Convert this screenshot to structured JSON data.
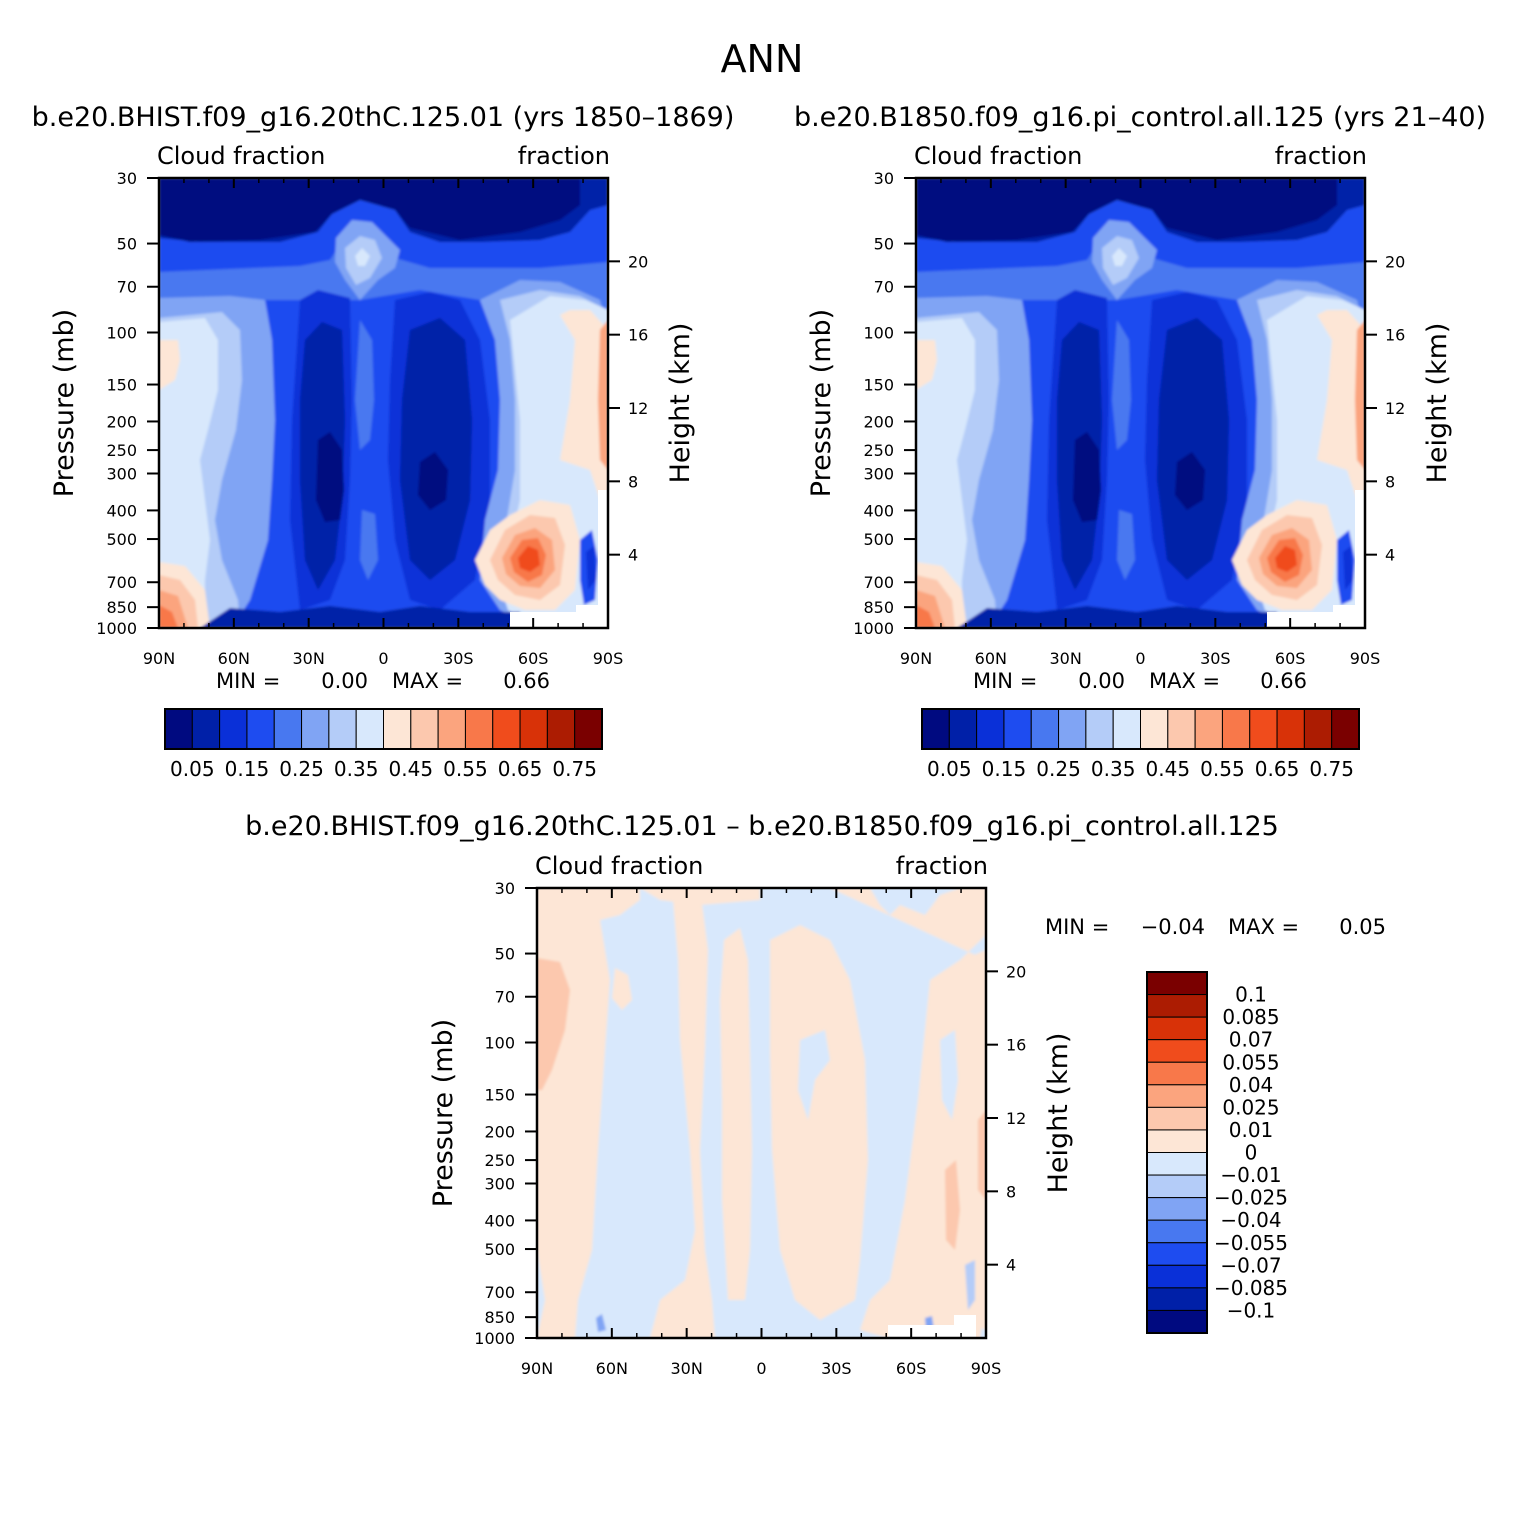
{
  "figure": {
    "title": "ANN",
    "panel_left_title": "b.e20.BHIST.f09_g16.20thC.125.01 (yrs 1850–1869)",
    "panel_right_title": "b.e20.B1850.f09_g16.pi_control.all.125 (yrs 21–40)",
    "diff_title": "b.e20.BHIST.f09_g16.20thC.125.01 – b.e20.B1850.f09_g16.pi_control.all.125"
  },
  "chart_data": [
    {
      "type": "heatmap",
      "panel": "left",
      "variable_label": "Cloud fraction",
      "units_label": "fraction",
      "ylabel": "Pressure (mb)",
      "ylabel_right": "Height (km)",
      "x_ticks": [
        "90N",
        "60N",
        "30N",
        "0",
        "30S",
        "60S",
        "90S"
      ],
      "xlim": [
        90,
        -90
      ],
      "y_ticks": [
        "30",
        "50",
        "70",
        "100",
        "150",
        "200",
        "250",
        "300",
        "400",
        "500",
        "700",
        "850",
        "1000"
      ],
      "ylim": [
        1000,
        30
      ],
      "y_scale": "log",
      "y_ticks_right": [
        "20",
        "16",
        "12",
        "8",
        "4"
      ],
      "stats": {
        "min_label": "MIN =",
        "min_value": "0.00",
        "max_label": "MAX =",
        "max_value": "0.66"
      },
      "colorbar": {
        "orientation": "horizontal",
        "labels": [
          "0.05",
          "0.15",
          "0.25",
          "0.35",
          "0.45",
          "0.55",
          "0.65",
          "0.75"
        ],
        "colors": [
          "#000a80",
          "#0020a8",
          "#0a30d8",
          "#1e4cf0",
          "#4878f0",
          "#80a4f4",
          "#b4ccf8",
          "#d8e8fc",
          "#fde6d6",
          "#fcc8ae",
          "#fba47e",
          "#f8784a",
          "#f04c1c",
          "#d83208",
          "#ac1c02",
          "#7a0000"
        ]
      }
    },
    {
      "type": "heatmap",
      "panel": "right",
      "variable_label": "Cloud fraction",
      "units_label": "fraction",
      "ylabel": "Pressure (mb)",
      "ylabel_right": "Height (km)",
      "x_ticks": [
        "90N",
        "60N",
        "30N",
        "0",
        "30S",
        "60S",
        "90S"
      ],
      "xlim": [
        90,
        -90
      ],
      "y_ticks": [
        "30",
        "50",
        "70",
        "100",
        "150",
        "200",
        "250",
        "300",
        "400",
        "500",
        "700",
        "850",
        "1000"
      ],
      "ylim": [
        1000,
        30
      ],
      "y_scale": "log",
      "y_ticks_right": [
        "20",
        "16",
        "12",
        "8",
        "4"
      ],
      "stats": {
        "min_label": "MIN =",
        "min_value": "0.00",
        "max_label": "MAX =",
        "max_value": "0.66"
      },
      "colorbar": {
        "orientation": "horizontal",
        "labels": [
          "0.05",
          "0.15",
          "0.25",
          "0.35",
          "0.45",
          "0.55",
          "0.65",
          "0.75"
        ],
        "colors": [
          "#000a80",
          "#0020a8",
          "#0a30d8",
          "#1e4cf0",
          "#4878f0",
          "#80a4f4",
          "#b4ccf8",
          "#d8e8fc",
          "#fde6d6",
          "#fcc8ae",
          "#fba47e",
          "#f8784a",
          "#f04c1c",
          "#d83208",
          "#ac1c02",
          "#7a0000"
        ]
      }
    },
    {
      "type": "heatmap",
      "panel": "difference",
      "variable_label": "Cloud fraction",
      "units_label": "fraction",
      "ylabel": "Pressure (mb)",
      "ylabel_right": "Height (km)",
      "x_ticks": [
        "90N",
        "60N",
        "30N",
        "0",
        "30S",
        "60S",
        "90S"
      ],
      "xlim": [
        90,
        -90
      ],
      "y_ticks": [
        "30",
        "50",
        "70",
        "100",
        "150",
        "200",
        "250",
        "300",
        "400",
        "500",
        "700",
        "850",
        "1000"
      ],
      "ylim": [
        1000,
        30
      ],
      "y_scale": "log",
      "y_ticks_right": [
        "20",
        "16",
        "12",
        "8",
        "4"
      ],
      "stats": {
        "min_label": "MIN =",
        "min_value": "−0.04",
        "max_label": "MAX =",
        "max_value": "0.05"
      },
      "colorbar": {
        "orientation": "vertical",
        "labels": [
          "0.1",
          "0.085",
          "0.07",
          "0.055",
          "0.04",
          "0.025",
          "0.01",
          "0",
          "−0.01",
          "−0.025",
          "−0.04",
          "−0.055",
          "−0.07",
          "−0.085",
          "−0.1"
        ],
        "colors": [
          "#7a0000",
          "#ac1c02",
          "#d83208",
          "#f04c1c",
          "#f8784a",
          "#fba47e",
          "#fcc8ae",
          "#fde6d6",
          "#d8e8fc",
          "#b4ccf8",
          "#80a4f4",
          "#4878f0",
          "#1e4cf0",
          "#0a30d8",
          "#0020a8",
          "#000a80"
        ]
      }
    }
  ]
}
